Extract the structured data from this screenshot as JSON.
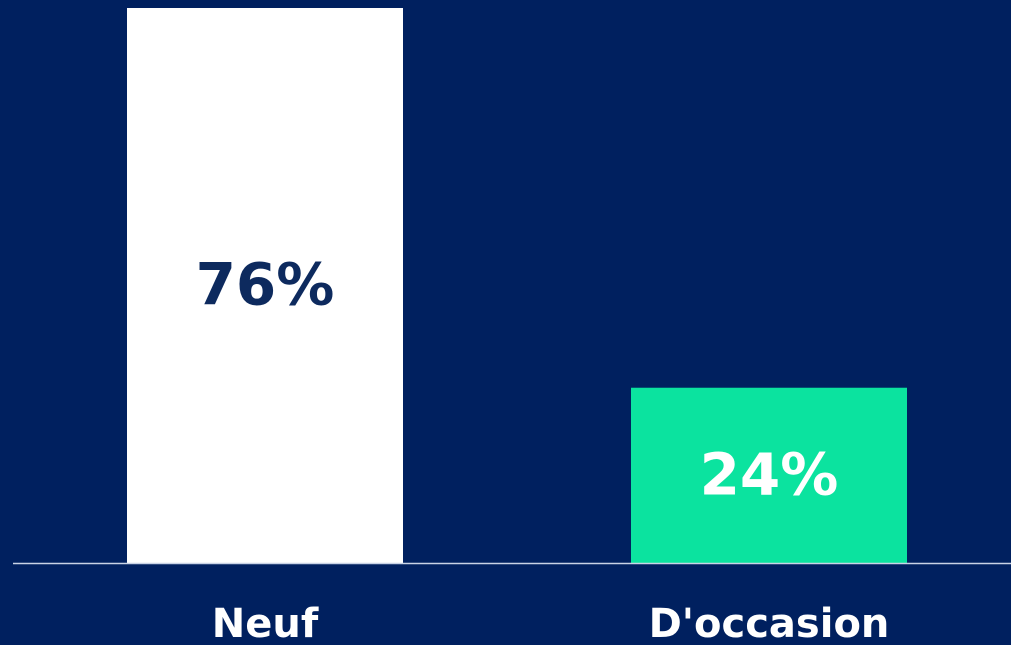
{
  "chart_data": {
    "type": "bar",
    "categories": [
      "Neuf",
      "D'occasion"
    ],
    "values": [
      76,
      24
    ],
    "value_labels": [
      "76%",
      "24%"
    ],
    "colors": [
      "#ffffff",
      "#0be39f"
    ],
    "value_label_colors": [
      "#0d2a5e",
      "#ffffff"
    ],
    "background": "#00205f"
  }
}
